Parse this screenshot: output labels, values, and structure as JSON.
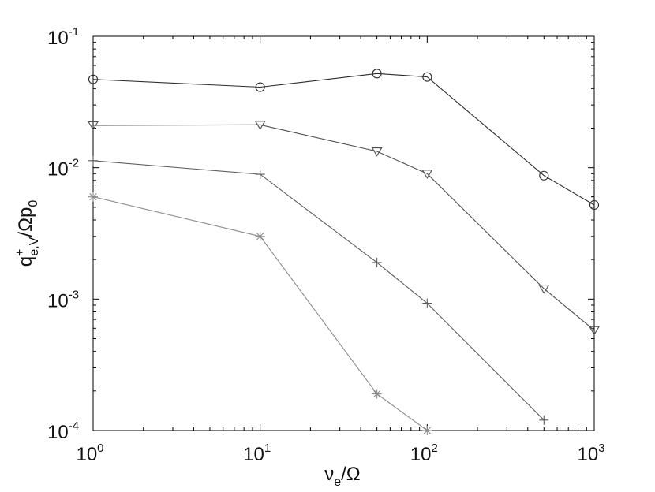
{
  "chart_data": {
    "type": "line",
    "x_scale": "log",
    "y_scale": "log",
    "xlim": [
      1,
      1000
    ],
    "ylim": [
      0.0001,
      0.1
    ],
    "grid": false,
    "x_ticks": [
      {
        "base": "10",
        "exp": "0",
        "value": 1
      },
      {
        "base": "10",
        "exp": "1",
        "value": 10
      },
      {
        "base": "10",
        "exp": "2",
        "value": 100
      },
      {
        "base": "10",
        "exp": "3",
        "value": 1000
      }
    ],
    "y_ticks": [
      {
        "base": "10",
        "exp": "-4",
        "value": 0.0001
      },
      {
        "base": "10",
        "exp": "-3",
        "value": 0.001
      },
      {
        "base": "10",
        "exp": "-2",
        "value": 0.01
      },
      {
        "base": "10",
        "exp": "-1",
        "value": 0.1
      }
    ],
    "xlabel": {
      "main": "ν",
      "sub": "e",
      "rest": "/Ω"
    },
    "ylabel": {
      "main": "q",
      "sup": "+",
      "sub": "e,V",
      "rest": "/Ωp",
      "sub2": "0"
    },
    "series": [
      {
        "marker": "circle",
        "color": "#2b2b2b",
        "x": [
          1,
          10,
          50,
          100,
          500,
          1000
        ],
        "y": [
          0.047,
          0.041,
          0.052,
          0.049,
          0.0087,
          0.0052
        ]
      },
      {
        "marker": "triangle-down",
        "color": "#4d4d4d",
        "x": [
          1,
          10,
          50,
          100,
          500,
          1000
        ],
        "y": [
          0.021,
          0.0212,
          0.0133,
          0.009,
          0.0012,
          0.00058
        ]
      },
      {
        "marker": "plus",
        "color": "#5c5c5c",
        "x": [
          1,
          10,
          50,
          100,
          500
        ],
        "y": [
          0.0113,
          0.0089,
          0.0019,
          0.00093,
          0.00012
        ]
      },
      {
        "marker": "asterisk",
        "color": "#8c8c8c",
        "x": [
          1,
          10,
          50,
          100
        ],
        "y": [
          0.006,
          0.003,
          0.00019,
          0.0001
        ]
      }
    ]
  }
}
